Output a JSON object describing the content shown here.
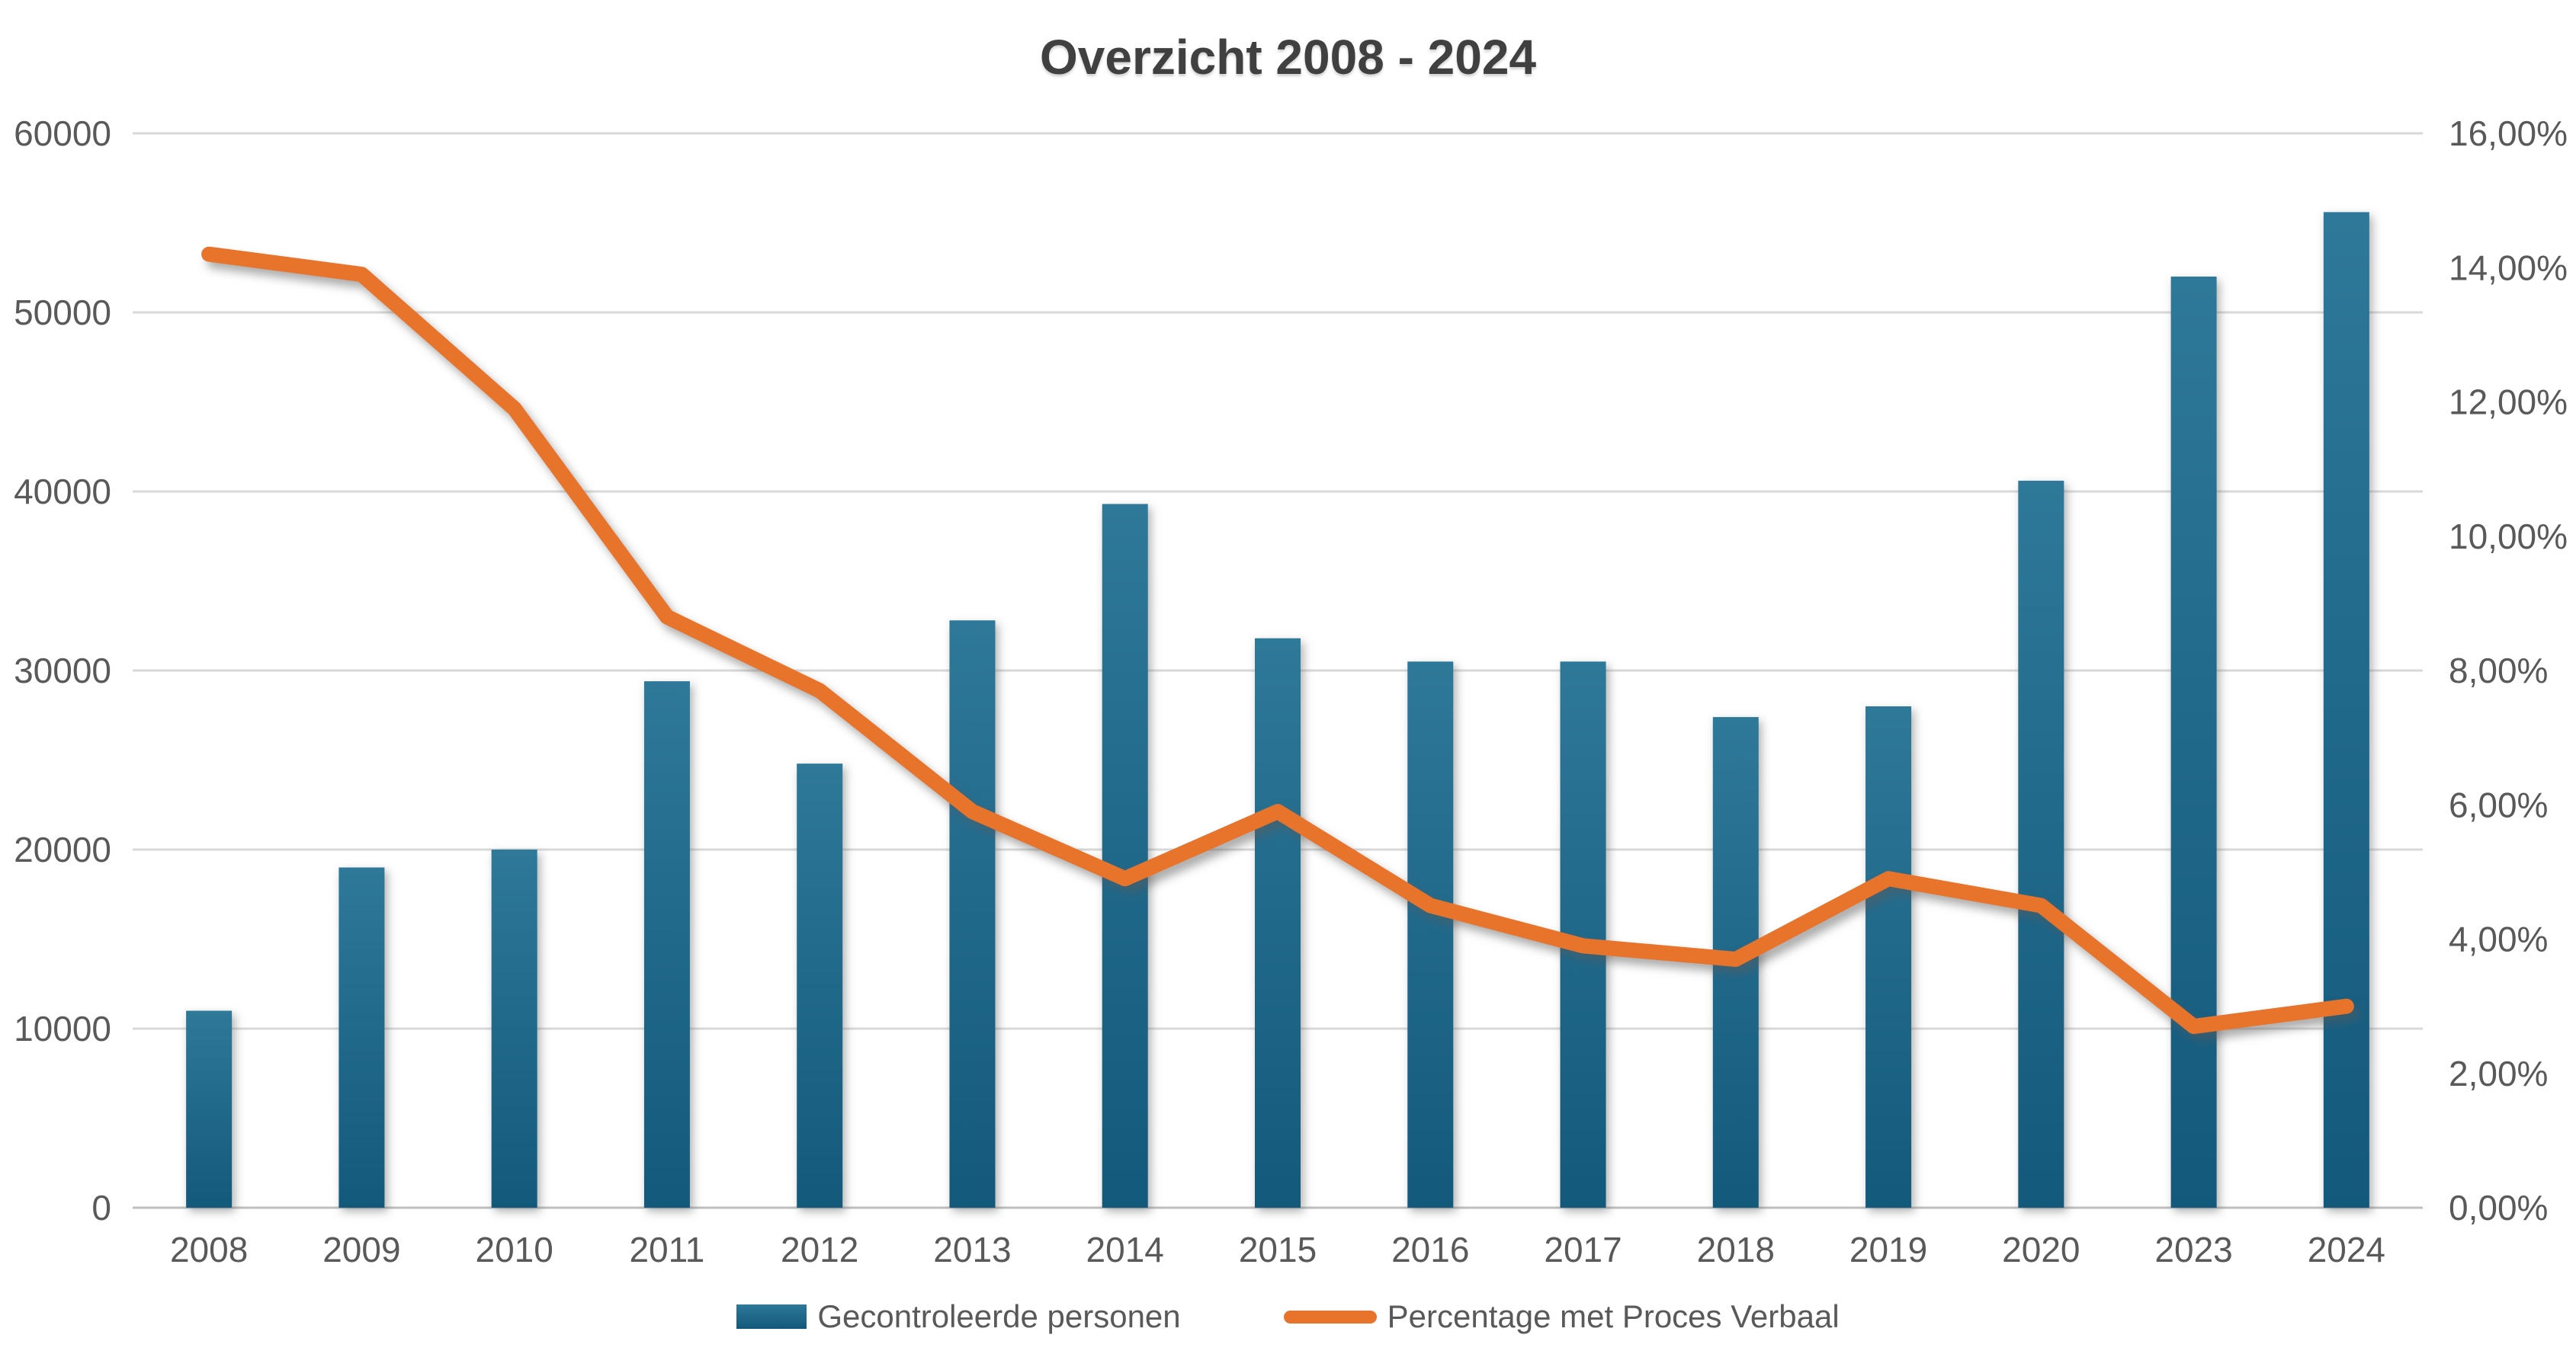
{
  "chart": {
    "title": "Overzicht 2008 - 2024",
    "legend": [
      {
        "label": "Gecontroleerde personen",
        "series_type": "bar"
      },
      {
        "label": "Percentage met Proces Verbaal",
        "series_type": "line"
      }
    ],
    "colors": {
      "bar_gradient_top": "#2E7899",
      "bar_gradient_bottom": "#13597C",
      "line": "#E8732B",
      "title_text": "#404040",
      "axis_text": "#595959",
      "gridline": "#D9D9D9",
      "axis_line": "#BFBFBF",
      "background": "#FFFFFF"
    }
  },
  "chart_data": {
    "type": "combo",
    "title": "Overzicht 2008 - 2024",
    "categories": [
      "2008",
      "2009",
      "2010",
      "2011",
      "2012",
      "2013",
      "2014",
      "2015",
      "2016",
      "2017",
      "2018",
      "2019",
      "2020",
      "2023",
      "2024"
    ],
    "series": [
      {
        "name": "Gecontroleerde personen",
        "type": "bar",
        "axis": "left",
        "values": [
          11000,
          19000,
          20000,
          29400,
          24800,
          32800,
          39300,
          31800,
          30500,
          30500,
          27400,
          28000,
          40600,
          52000,
          55600
        ]
      },
      {
        "name": "Percentage met Proces Verbaal",
        "type": "line",
        "axis": "right",
        "values_percent": [
          14.2,
          13.9,
          11.9,
          8.8,
          7.7,
          5.9,
          4.9,
          5.9,
          4.5,
          3.9,
          3.7,
          4.9,
          4.5,
          2.7,
          3.0
        ]
      }
    ],
    "y_left": {
      "min": 0,
      "max": 60000,
      "step": 10000,
      "tick_labels": [
        "0",
        "10000",
        "20000",
        "30000",
        "40000",
        "50000",
        "60000"
      ]
    },
    "y_right": {
      "min": 0,
      "max": 16,
      "step": 2,
      "tick_labels": [
        "0,00%",
        "2,00%",
        "4,00%",
        "6,00%",
        "8,00%",
        "10,00%",
        "12,00%",
        "14,00%",
        "16,00%"
      ]
    },
    "grid": "horizontal",
    "legend_position": "bottom"
  }
}
